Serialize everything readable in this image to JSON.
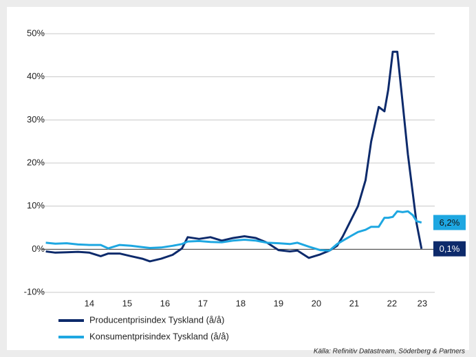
{
  "chart_data": {
    "type": "line",
    "x": [
      2013.35,
      2013.6,
      2013.9,
      2014.2,
      2014.5,
      2014.8,
      2015.0,
      2015.3,
      2015.6,
      2015.9,
      2016.1,
      2016.4,
      2016.7,
      2016.95,
      2017.1,
      2017.4,
      2017.7,
      2018.0,
      2018.3,
      2018.6,
      2018.9,
      2019.2,
      2019.5,
      2019.8,
      2020.0,
      2020.3,
      2020.6,
      2020.85,
      2021.05,
      2021.2,
      2021.4,
      2021.6,
      2021.8,
      2021.95,
      2022.15,
      2022.3,
      2022.4,
      2022.52,
      2022.64,
      2022.78,
      2022.92,
      2023.05,
      2023.15,
      2023.28
    ],
    "series": [
      {
        "name": "Producentprisindex Tyskland (å/å)",
        "color": "#0d2a6b",
        "values": [
          -0.5,
          -0.8,
          -0.7,
          -0.6,
          -0.8,
          -1.6,
          -1.0,
          -1.0,
          -1.6,
          -2.2,
          -2.8,
          -2.2,
          -1.3,
          0.2,
          2.8,
          2.4,
          2.8,
          2.0,
          2.6,
          3.0,
          2.6,
          1.5,
          -0.2,
          -0.5,
          -0.3,
          -2.0,
          -1.2,
          -0.3,
          0.8,
          3.0,
          6.5,
          10.0,
          16.0,
          25.0,
          33.0,
          32.0,
          37.0,
          45.8,
          45.8,
          34.0,
          22.0,
          13.0,
          6.0,
          0.1
        ],
        "value_labels": [
          null,
          null,
          null,
          null,
          null,
          null,
          null,
          null,
          null,
          null,
          null,
          null,
          null,
          null,
          null,
          null,
          null,
          null,
          null,
          null,
          null,
          null,
          null,
          null,
          null,
          null,
          null,
          null,
          null,
          null,
          null,
          null,
          null,
          null,
          null,
          null,
          null,
          null,
          null,
          null,
          null,
          null,
          null,
          "0,1%"
        ]
      },
      {
        "name": "Konsumentprisindex Tyskland (å/å)",
        "color": "#1ea7e1",
        "values": [
          1.5,
          1.3,
          1.4,
          1.1,
          1.0,
          1.0,
          0.2,
          1.0,
          0.8,
          0.5,
          0.3,
          0.4,
          0.8,
          1.2,
          1.8,
          1.9,
          1.7,
          1.6,
          2.0,
          2.2,
          2.0,
          1.5,
          1.4,
          1.2,
          1.5,
          0.6,
          -0.2,
          -0.3,
          1.2,
          2.0,
          3.0,
          4.0,
          4.5,
          5.2,
          5.2,
          7.3,
          7.3,
          7.5,
          8.8,
          8.6,
          8.8,
          7.9,
          6.5,
          6.2
        ],
        "value_labels": [
          null,
          null,
          null,
          null,
          null,
          null,
          null,
          null,
          null,
          null,
          null,
          null,
          null,
          null,
          null,
          null,
          null,
          null,
          null,
          null,
          null,
          null,
          null,
          null,
          null,
          null,
          null,
          null,
          null,
          null,
          null,
          null,
          null,
          null,
          null,
          null,
          null,
          null,
          null,
          null,
          null,
          null,
          null,
          "6,2%"
        ]
      }
    ],
    "xlim": [
      2013.32,
      2023.63
    ],
    "xticks": [
      {
        "value": 2014.5,
        "label": "14"
      },
      {
        "value": 2015.5,
        "label": "15"
      },
      {
        "value": 2016.5,
        "label": "16"
      },
      {
        "value": 2017.5,
        "label": "17"
      },
      {
        "value": 2018.5,
        "label": "18"
      },
      {
        "value": 2019.5,
        "label": "19"
      },
      {
        "value": 2020.5,
        "label": "20"
      },
      {
        "value": 2021.5,
        "label": "21"
      },
      {
        "value": 2022.5,
        "label": "22"
      },
      {
        "value": 2023.3,
        "label": "23"
      }
    ],
    "ylim": [
      -10,
      50
    ],
    "yticks": [
      {
        "value": -10,
        "label": "-10%"
      },
      {
        "value": 0,
        "label": "0%"
      },
      {
        "value": 10,
        "label": "10%"
      },
      {
        "value": 20,
        "label": "20%"
      },
      {
        "value": 30,
        "label": "30%"
      },
      {
        "value": 40,
        "label": "40%"
      },
      {
        "value": 50,
        "label": "50%"
      }
    ],
    "grid": true,
    "source": "Källa: Refinitiv Datastream, Söderberg & Partners"
  }
}
